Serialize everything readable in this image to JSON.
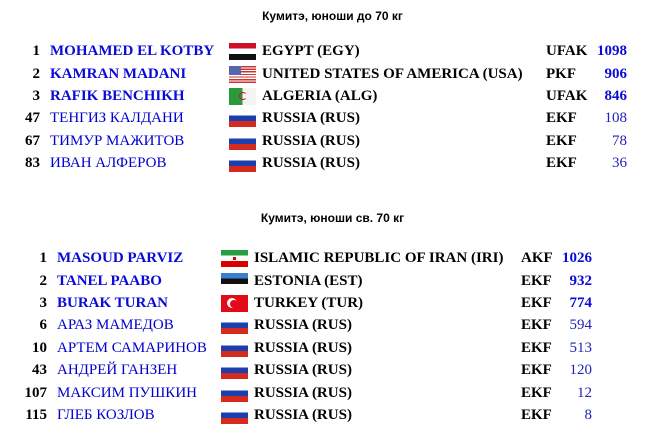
{
  "sections": [
    {
      "title": "Кумитэ, юноши до 70 кг",
      "rows": [
        {
          "rank": "1",
          "name": "MOHAMED EL KOTBY",
          "flag": "egypt-flag",
          "country": "EGYPT  (EGY)",
          "club": "UFAK",
          "points": "1098",
          "top": true
        },
        {
          "rank": "2",
          "name": "KAMRAN MADANI",
          "flag": "usa-flag",
          "country": "UNITED STATES  OF AMERICA (USA)",
          "club": "PKF",
          "points": "906",
          "top": true
        },
        {
          "rank": "3",
          "name": "RAFIK  BENCHIKH",
          "flag": "algeria-flag",
          "country": "ALGERIA  (ALG)",
          "club": "UFAK",
          "points": "846",
          "top": true
        },
        {
          "rank": "47",
          "name": "ТЕНГИЗ  КАЛДАНИ",
          "flag": "russia-flag",
          "country": "RUSSIA (RUS)",
          "club": "EKF",
          "points": "108",
          "top": false
        },
        {
          "rank": "67",
          "name": "ТИМУР  МАЖИТОВ",
          "flag": "russia-flag",
          "country": "RUSSIA (RUS)",
          "club": "EKF",
          "points": "78",
          "top": false
        },
        {
          "rank": "83",
          "name": "ИВАН  АЛФЕРОВ",
          "flag": "russia-flag",
          "country": "RUSSIA (RUS)",
          "club": "EKF",
          "points": "36",
          "top": false
        }
      ]
    },
    {
      "title": "Кумитэ, юноши св. 70 кг",
      "rows": [
        {
          "rank": "1",
          "name": "MASOUD PARVIZ",
          "flag": "iran-flag",
          "country": "ISLAMIC REPUBLIC  OF IRAN (IRI)",
          "club": "AKF",
          "points": "1026",
          "top": true
        },
        {
          "rank": "2",
          "name": "TANEL  PAABO",
          "flag": "estonia-flag",
          "country": "ESTONIA  (EST)",
          "club": "EKF",
          "points": "932",
          "top": true
        },
        {
          "rank": "3",
          "name": "BURAK TURAN",
          "flag": "turkey-flag",
          "country": "TURKEY  (TUR)",
          "club": "EKF",
          "points": "774",
          "top": true
        },
        {
          "rank": "6",
          "name": "АРАЗ МАМЕДОВ",
          "flag": "russia-flag",
          "country": "RUSSIA (RUS)",
          "club": "EKF",
          "points": "594",
          "top": false
        },
        {
          "rank": "10",
          "name": "АРТЕМ  САМАРИНОВ",
          "flag": "russia-flag",
          "country": "RUSSIA (RUS)",
          "club": "EKF",
          "points": "513",
          "top": false
        },
        {
          "rank": "43",
          "name": "АНДРЕЙ  ГАНЗЕН",
          "flag": "russia-flag",
          "country": "RUSSIA (RUS)",
          "club": "EKF",
          "points": "120",
          "top": false
        },
        {
          "rank": "107",
          "name": "МАКСИМ  ПУШКИН",
          "flag": "russia-flag",
          "country": "RUSSIA (RUS)",
          "club": "EKF",
          "points": "12",
          "top": false
        },
        {
          "rank": "115",
          "name": "ГЛЕБ  КОЗЛОВ",
          "flag": "russia-flag",
          "country": "RUSSIA (RUS)",
          "club": "EKF",
          "points": "8",
          "top": false
        }
      ]
    }
  ]
}
